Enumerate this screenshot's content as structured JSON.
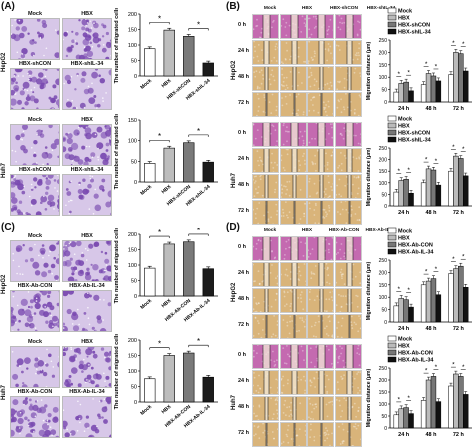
{
  "panels": {
    "A": {
      "label": "(A)",
      "rows": [
        {
          "cell": "HepG2",
          "images": [
            "Mock",
            "HBX",
            "HBX-shCON",
            "HBX-shIL-34"
          ]
        },
        {
          "cell": "Huh7",
          "images": [
            "Mock",
            "HBX",
            "HBX-shCON",
            "HBX-shIL-34"
          ]
        }
      ]
    },
    "B": {
      "label": "(B)",
      "columns": [
        "Mock",
        "HBX",
        "HBX-shCON",
        "HBX-shIL-34"
      ],
      "times": [
        "0 h",
        "24 h",
        "48 h",
        "72 h"
      ],
      "cells": [
        "HepG2",
        "Huh7"
      ]
    },
    "C": {
      "label": "(C)",
      "rows": [
        {
          "cell": "HepG2",
          "images": [
            "Mock",
            "HBX",
            "HBX-Ab-CON",
            "HBX-Ab-IL-34"
          ]
        },
        {
          "cell": "Huh7",
          "images": [
            "Mock",
            "HBX",
            "HBX-Ab-CON",
            "HBX-Ab-IL-34"
          ]
        }
      ]
    },
    "D": {
      "label": "(D)",
      "columns": [
        "Mock",
        "HBX",
        "HBX-Ab-CON",
        "HBX-Ab-IL-34"
      ],
      "times": [
        "0 h",
        "24 h",
        "48 h",
        "72 h"
      ],
      "cells": [
        "HepG2",
        "Huh7"
      ]
    }
  },
  "chart_data": [
    {
      "id": "A1",
      "type": "bar",
      "ylabel": "The number of migrated cells",
      "ylim": [
        0,
        200
      ],
      "yticks": [
        0,
        50,
        100,
        150,
        200
      ],
      "categories": [
        "Mock",
        "HBX",
        "HBX-shCON",
        "HBX-shIL-34"
      ],
      "values": [
        88,
        148,
        128,
        42
      ],
      "sig": [
        "*",
        "*"
      ]
    },
    {
      "id": "A2",
      "type": "bar",
      "ylabel": "The number of migrated cells",
      "ylim": [
        0,
        150
      ],
      "yticks": [
        0,
        50,
        100,
        150
      ],
      "categories": [
        "Mock",
        "HBX",
        "HBX-shCON",
        "HBX-shIL-34"
      ],
      "values": [
        45,
        82,
        95,
        48
      ],
      "sig": [
        "*",
        "*"
      ]
    },
    {
      "id": "B1",
      "type": "bar",
      "ylabel": "Migration distance (μm)",
      "ylim": [
        0,
        250
      ],
      "yticks": [
        0,
        50,
        100,
        150,
        200,
        250
      ],
      "categories": [
        "24 h",
        "48 h",
        "72 h"
      ],
      "series": [
        {
          "name": "Mock",
          "values": [
            40,
            70,
            110
          ]
        },
        {
          "name": "HBX",
          "values": [
            75,
            115,
            200
          ]
        },
        {
          "name": "HBX-shCON",
          "values": [
            80,
            105,
            195
          ]
        },
        {
          "name": "HBX-shIL-34",
          "values": [
            45,
            85,
            125
          ]
        }
      ],
      "sig": [
        "*",
        "*"
      ]
    },
    {
      "id": "B2",
      "type": "bar",
      "ylabel": "Migration distance (μm)",
      "ylim": [
        0,
        250
      ],
      "yticks": [
        0,
        50,
        100,
        150,
        200,
        250
      ],
      "categories": [
        "24 h",
        "48 h",
        "72 h"
      ],
      "series": [
        {
          "name": "Mock",
          "values": [
            60,
            100,
            150
          ]
        },
        {
          "name": "HBX",
          "values": [
            110,
            160,
            215
          ]
        },
        {
          "name": "HBX-shCON",
          "values": [
            115,
            155,
            205
          ]
        },
        {
          "name": "HBX-shIL-34",
          "values": [
            55,
            90,
            130
          ]
        }
      ],
      "sig": [
        "*",
        "*"
      ]
    },
    {
      "id": "C1",
      "type": "bar",
      "ylabel": "The number of migrated cells",
      "ylim": [
        0,
        200
      ],
      "yticks": [
        0,
        50,
        100,
        150,
        200
      ],
      "categories": [
        "Mock",
        "HBX",
        "HBX-Ab-CON",
        "HBX-Ab-IL-34"
      ],
      "values": [
        90,
        168,
        175,
        88
      ],
      "sig": [
        "*",
        "*"
      ]
    },
    {
      "id": "C2",
      "type": "bar",
      "ylabel": "The number of migrated cells",
      "ylim": [
        0,
        200
      ],
      "yticks": [
        0,
        50,
        100,
        150,
        200
      ],
      "categories": [
        "Mock",
        "HBX",
        "HBX-Ab-CON",
        "HBX-Ab-IL-34"
      ],
      "values": [
        75,
        150,
        158,
        80
      ],
      "sig": [
        "*",
        "*"
      ]
    },
    {
      "id": "D1",
      "type": "bar",
      "ylabel": "Migration distance (μm)",
      "ylim": [
        0,
        250
      ],
      "yticks": [
        0,
        50,
        100,
        150,
        200,
        250
      ],
      "categories": [
        "24 h",
        "48 h",
        "72 h"
      ],
      "series": [
        {
          "name": "Mock",
          "values": [
            65,
            150,
            195
          ]
        },
        {
          "name": "HBX",
          "values": [
            95,
            165,
            215
          ]
        },
        {
          "name": "HBX-Ab-CON",
          "values": [
            90,
            175,
            225
          ]
        },
        {
          "name": "HBX-Ab-IL-34",
          "values": [
            60,
            110,
            140
          ]
        }
      ],
      "sig": [
        "*",
        "*"
      ]
    },
    {
      "id": "D2",
      "type": "bar",
      "ylabel": "Migration distance (μm)",
      "ylim": [
        0,
        250
      ],
      "yticks": [
        0,
        50,
        100,
        150,
        200,
        250
      ],
      "categories": [
        "24 h",
        "48 h",
        "72 h"
      ],
      "series": [
        {
          "name": "Mock",
          "values": [
            55,
            115,
            175
          ]
        },
        {
          "name": "HBX",
          "values": [
            80,
            200,
            225
          ]
        },
        {
          "name": "HBX-Ab-CON",
          "values": [
            85,
            215,
            215
          ]
        },
        {
          "name": "HBX-Ab-IL-34",
          "values": [
            60,
            110,
            140
          ]
        }
      ],
      "sig": [
        "*",
        "*"
      ]
    }
  ],
  "colors": {
    "bars4": [
      "#ffffff",
      "#bbbbbb",
      "#777777",
      "#111111"
    ],
    "barA": [
      "#ffffff",
      "#bdbdbd",
      "#7a7a7a",
      "#1c1c1c"
    ],
    "stain": "#7a4ab0",
    "stainLight": "#d7c7e8",
    "wound": "#d9b47a",
    "woundLight": "#eee0c8",
    "pink": "#c46ab0"
  }
}
